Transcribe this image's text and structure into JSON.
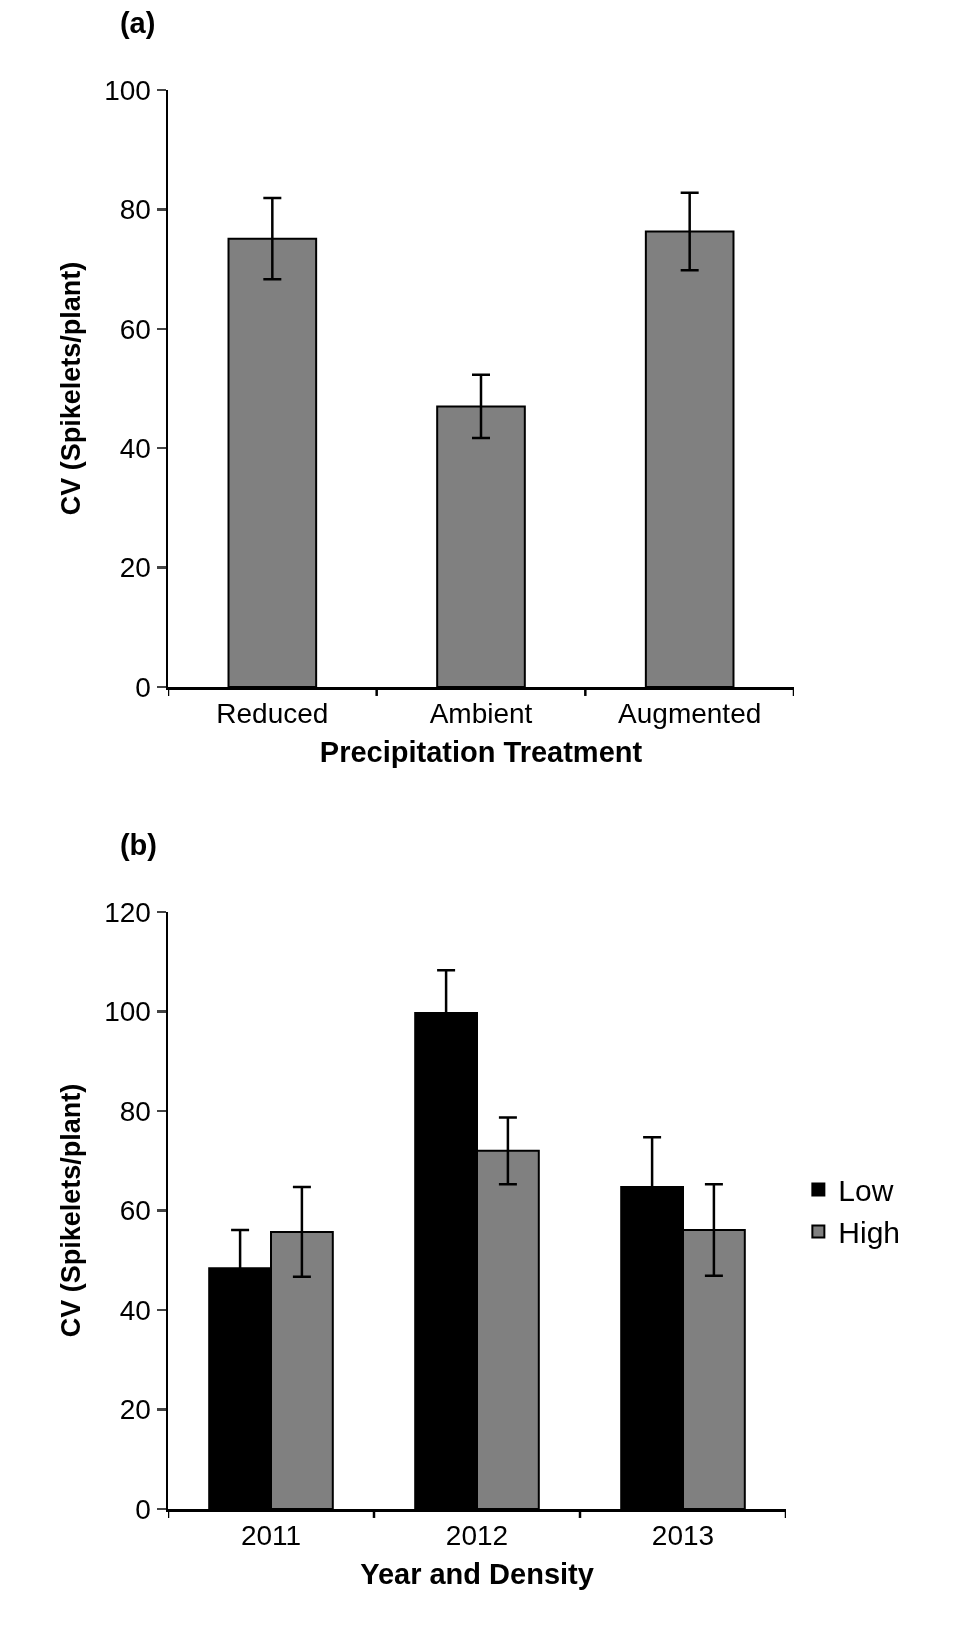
{
  "chart_data": [
    {
      "type": "bar",
      "title": "(a)",
      "xlabel": "Precipitation Treatment",
      "ylabel": "CV (Spikelets/plant)",
      "categories": [
        "Reduced",
        "Ambient",
        "Augmented"
      ],
      "values": [
        75.1,
        47.0,
        76.3
      ],
      "errors": [
        6.8,
        5.3,
        6.5
      ],
      "color": "#808080",
      "ylim": [
        0,
        100
      ],
      "yticks": [
        0,
        20,
        40,
        60,
        80,
        100
      ],
      "grid": false,
      "legend": false
    },
    {
      "type": "bar",
      "title": "(b)",
      "xlabel": "Year and Density",
      "ylabel": "CV (Spikelets/plant)",
      "categories": [
        "2011",
        "2012",
        "2013"
      ],
      "series": [
        {
          "name": "Low",
          "color": "#000000",
          "values": [
            48.4,
            99.7,
            64.7
          ],
          "errors": [
            7.7,
            8.6,
            10
          ]
        },
        {
          "name": "High",
          "color": "#808080",
          "values": [
            55.7,
            72.0,
            56.1
          ],
          "errors": [
            9,
            6.7,
            9.2
          ]
        }
      ],
      "ylim": [
        0,
        120
      ],
      "yticks": [
        0,
        20,
        40,
        60,
        80,
        100,
        120
      ],
      "grid": false,
      "legend": "right"
    }
  ]
}
